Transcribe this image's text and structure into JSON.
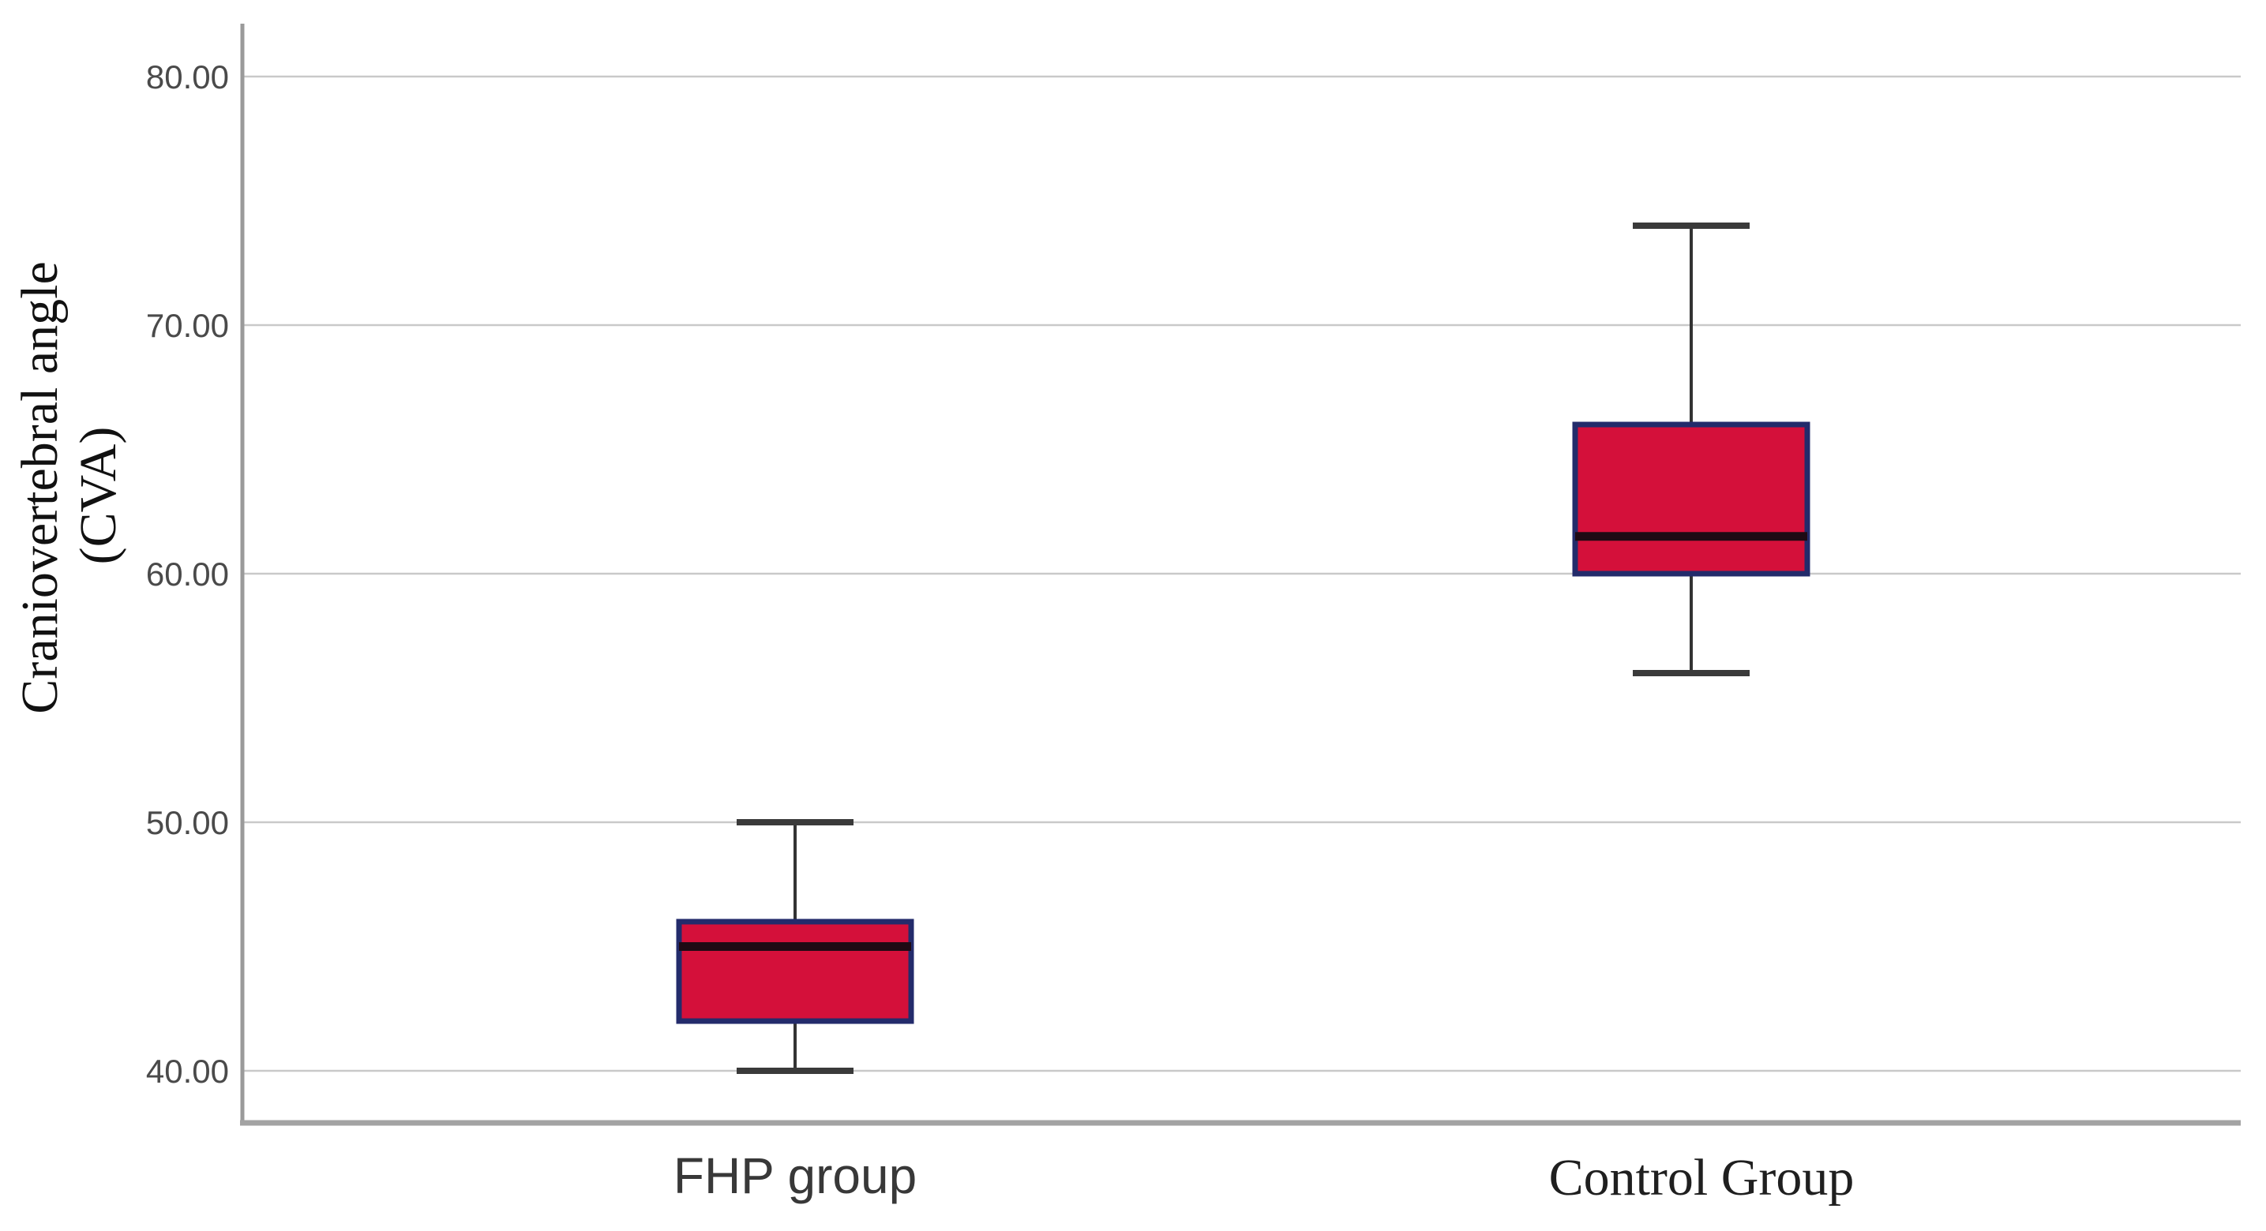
{
  "chart_data": {
    "type": "boxplot",
    "title": "",
    "ylabel_line1": "Craniovertebral angle",
    "ylabel_line2": "(CVA)",
    "xlabel": "",
    "categories": [
      "FHP group",
      "Control Group"
    ],
    "yticks": [
      80,
      70,
      60,
      50,
      40
    ],
    "ytick_labels": [
      "80.00",
      "70.00",
      "60.00",
      "50.00",
      "40.00"
    ],
    "ylim": [
      37.9,
      82.1
    ],
    "grid": "horizontal-only",
    "legend": "none",
    "series": [
      {
        "name": "FHP group",
        "whisker_low": 40,
        "q1": 42,
        "median": 45,
        "q3": 46,
        "whisker_high": 50
      },
      {
        "name": "Control Group",
        "whisker_low": 56,
        "q1": 60,
        "median": 61.5,
        "q3": 66,
        "whisker_high": 74
      }
    ],
    "colors": {
      "box_fill": "#d4103a",
      "box_border": "#232b6b",
      "median_line": "#1e0a14",
      "whisker": "#333333",
      "gridline": "#c9c9c9",
      "axis_line": "#a3a3a3",
      "tick_label": "#4a4a4a"
    }
  }
}
